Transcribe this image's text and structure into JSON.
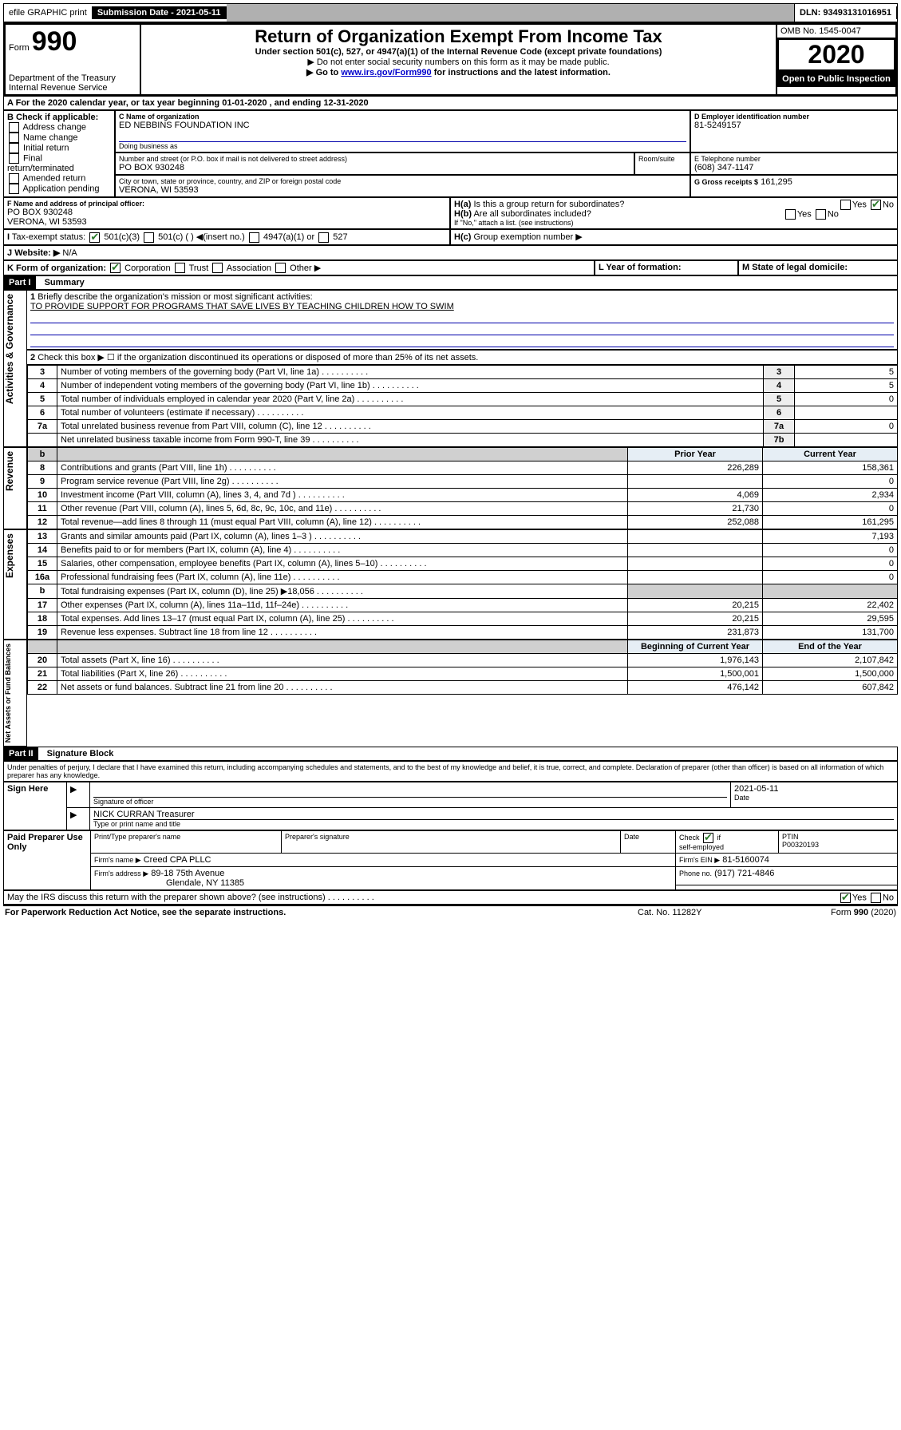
{
  "topbar": {
    "efile": "efile GRAPHIC print",
    "subdate_label": "Submission Date - 2021-05-11",
    "dln": "DLN: 93493131016951"
  },
  "header": {
    "form_word": "Form",
    "form_num": "990",
    "dept": "Department of the Treasury",
    "irs": "Internal Revenue Service",
    "title": "Return of Organization Exempt From Income Tax",
    "subtitle": "Under section 501(c), 527, or 4947(a)(1) of the Internal Revenue Code (except private foundations)",
    "warn": "▶ Do not enter social security numbers on this form as it may be made public.",
    "goto_pre": "▶ Go to ",
    "goto_link": "www.irs.gov/Form990",
    "goto_post": " for instructions and the latest information.",
    "omb": "OMB No. 1545-0047",
    "year": "2020",
    "open": "Open to Public Inspection"
  },
  "A": {
    "line": "For the 2020 calendar year, or tax year beginning 01-01-2020    , and ending 12-31-2020"
  },
  "B": {
    "label": "B Check if applicable:",
    "items": [
      "Address change",
      "Name change",
      "Initial return",
      "Final return/terminated",
      "Amended return",
      "Application pending"
    ]
  },
  "C": {
    "label": "C Name of organization",
    "name": "ED NEBBINS FOUNDATION INC",
    "dba_label": "Doing business as",
    "addr_label": "Number and street (or P.O. box if mail is not delivered to street address)",
    "room_label": "Room/suite",
    "addr": "PO BOX 930248",
    "city_label": "City or town, state or province, country, and ZIP or foreign postal code",
    "city": "VERONA, WI  53593"
  },
  "D": {
    "label": "D Employer identification number",
    "value": "81-5249157"
  },
  "E": {
    "label": "E Telephone number",
    "value": "(608) 347-1147"
  },
  "G": {
    "label": "G Gross receipts $",
    "value": "161,295"
  },
  "F": {
    "label": "F  Name and address of principal officer:",
    "line1": "PO BOX 930248",
    "line2": "VERONA, WI  53593"
  },
  "H": {
    "a": "Is this a group return for subordinates?",
    "b": "Are all subordinates included?",
    "b_note": "If \"No,\" attach a list. (see instructions)",
    "c": "Group exemption number ▶"
  },
  "I": {
    "label": "Tax-exempt status:",
    "opts": [
      "501(c)(3)",
      "501(c) (   ) ◀(insert no.)",
      "4947(a)(1) or",
      "527"
    ]
  },
  "J": {
    "label": "Website: ▶",
    "value": "N/A"
  },
  "K": {
    "label": "K Form of organization:",
    "opts": [
      "Corporation",
      "Trust",
      "Association",
      "Other ▶"
    ]
  },
  "L": {
    "label": "L Year of formation:"
  },
  "M": {
    "label": "M State of legal domicile:"
  },
  "partI": {
    "header": "Part I",
    "title": "Summary"
  },
  "summary": {
    "q1": "Briefly describe the organization's mission or most significant activities:",
    "mission": "TO PROVIDE SUPPORT FOR PROGRAMS THAT SAVE LIVES BY TEACHING CHILDREN HOW TO SWIM",
    "q2": "Check this box ▶ ☐  if the organization discontinued its operations or disposed of more than 25% of its net assets.",
    "lines_top": [
      {
        "n": "3",
        "t": "Number of voting members of the governing body (Part VI, line 1a)",
        "box": "3",
        "v": "5"
      },
      {
        "n": "4",
        "t": "Number of independent voting members of the governing body (Part VI, line 1b)",
        "box": "4",
        "v": "5"
      },
      {
        "n": "5",
        "t": "Total number of individuals employed in calendar year 2020 (Part V, line 2a)",
        "box": "5",
        "v": "0"
      },
      {
        "n": "6",
        "t": "Total number of volunteers (estimate if necessary)",
        "box": "6",
        "v": ""
      },
      {
        "n": "7a",
        "t": "Total unrelated business revenue from Part VIII, column (C), line 12",
        "box": "7a",
        "v": "0"
      },
      {
        "n": "",
        "t": "Net unrelated business taxable income from Form 990-T, line 39",
        "box": "7b",
        "v": ""
      }
    ],
    "col_prior": "Prior Year",
    "col_current": "Current Year",
    "col_begin": "Beginning of Current Year",
    "col_end": "End of the Year",
    "gov_label": "Activities & Governance",
    "rev_label": "Revenue",
    "exp_label": "Expenses",
    "net_label": "Net Assets or Fund Balances",
    "revenue": [
      {
        "n": "8",
        "t": "Contributions and grants (Part VIII, line 1h)",
        "p": "226,289",
        "c": "158,361"
      },
      {
        "n": "9",
        "t": "Program service revenue (Part VIII, line 2g)",
        "p": "",
        "c": "0"
      },
      {
        "n": "10",
        "t": "Investment income (Part VIII, column (A), lines 3, 4, and 7d )",
        "p": "4,069",
        "c": "2,934"
      },
      {
        "n": "11",
        "t": "Other revenue (Part VIII, column (A), lines 5, 6d, 8c, 9c, 10c, and 11e)",
        "p": "21,730",
        "c": "0"
      },
      {
        "n": "12",
        "t": "Total revenue—add lines 8 through 11 (must equal Part VIII, column (A), line 12)",
        "p": "252,088",
        "c": "161,295"
      }
    ],
    "expenses": [
      {
        "n": "13",
        "t": "Grants and similar amounts paid (Part IX, column (A), lines 1–3 )",
        "p": "",
        "c": "7,193"
      },
      {
        "n": "14",
        "t": "Benefits paid to or for members (Part IX, column (A), line 4)",
        "p": "",
        "c": "0"
      },
      {
        "n": "15",
        "t": "Salaries, other compensation, employee benefits (Part IX, column (A), lines 5–10)",
        "p": "",
        "c": "0"
      },
      {
        "n": "16a",
        "t": "Professional fundraising fees (Part IX, column (A), line 11e)",
        "p": "",
        "c": "0"
      },
      {
        "n": "b",
        "t": "Total fundraising expenses (Part IX, column (D), line 25) ▶18,056",
        "p": "GREY",
        "c": "GREY"
      },
      {
        "n": "17",
        "t": "Other expenses (Part IX, column (A), lines 11a–11d, 11f–24e)",
        "p": "20,215",
        "c": "22,402"
      },
      {
        "n": "18",
        "t": "Total expenses. Add lines 13–17 (must equal Part IX, column (A), line 25)",
        "p": "20,215",
        "c": "29,595"
      },
      {
        "n": "19",
        "t": "Revenue less expenses. Subtract line 18 from line 12",
        "p": "231,873",
        "c": "131,700"
      }
    ],
    "netassets": [
      {
        "n": "20",
        "t": "Total assets (Part X, line 16)",
        "p": "1,976,143",
        "c": "2,107,842"
      },
      {
        "n": "21",
        "t": "Total liabilities (Part X, line 26)",
        "p": "1,500,001",
        "c": "1,500,000"
      },
      {
        "n": "22",
        "t": "Net assets or fund balances. Subtract line 21 from line 20",
        "p": "476,142",
        "c": "607,842"
      }
    ]
  },
  "partII": {
    "header": "Part II",
    "title": "Signature Block"
  },
  "sig": {
    "perjury": "Under penalties of perjury, I declare that I have examined this return, including accompanying schedules and statements, and to the best of my knowledge and belief, it is true, correct, and complete. Declaration of preparer (other than officer) is based on all information of which preparer has any knowledge.",
    "sign_here": "Sign Here",
    "sig_officer": "Signature of officer",
    "date": "2021-05-11",
    "date_label": "Date",
    "name_title": "NICK CURRAN  Treasurer",
    "type_label": "Type or print name and title",
    "paid": "Paid Preparer Use Only",
    "pp_name_label": "Print/Type preparer's name",
    "pp_sig_label": "Preparer's signature",
    "pp_date_label": "Date",
    "self_emp_label": "self-employed",
    "check_if": "Check",
    "if": "if",
    "ptin_label": "PTIN",
    "ptin": "P00320193",
    "firm_name_label": "Firm's name    ▶",
    "firm_name": "Creed CPA PLLC",
    "firm_ein_label": "Firm's EIN ▶",
    "firm_ein": "81-5160074",
    "firm_addr_label": "Firm's address ▶",
    "firm_addr1": "89-18 75th Avenue",
    "firm_addr2": "Glendale, NY  11385",
    "phone_label": "Phone no.",
    "phone": "(917) 721-4846",
    "discuss": "May the IRS discuss this return with the preparer shown above? (see instructions)",
    "pra": "For Paperwork Reduction Act Notice, see the separate instructions.",
    "cat": "Cat. No. 11282Y",
    "formfoot": "Form 990 (2020)"
  }
}
